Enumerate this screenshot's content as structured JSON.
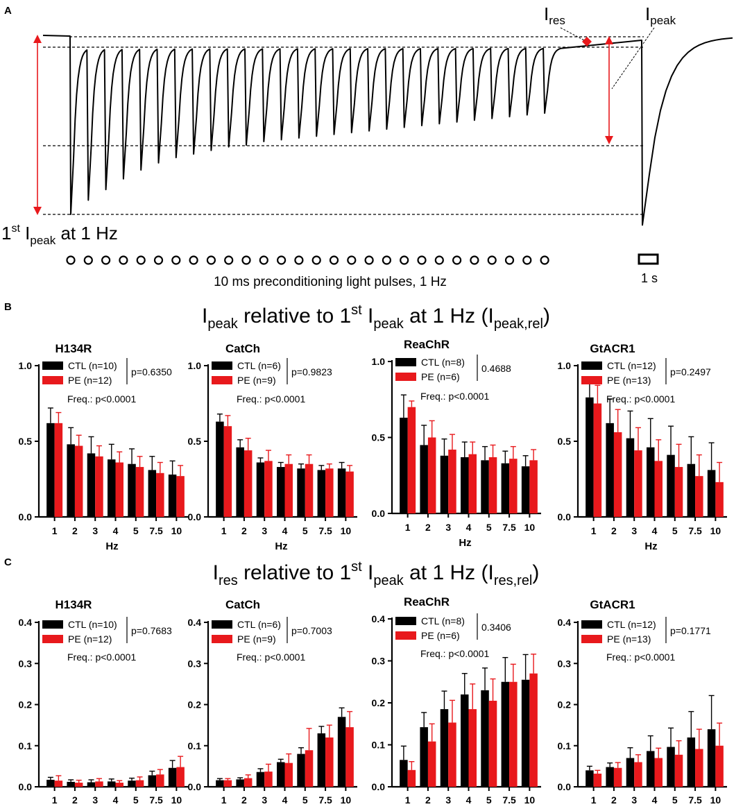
{
  "panelA": {
    "label": "A",
    "label_ires_main": "I",
    "label_ires_sub": "res",
    "label_ipeak_main": "I",
    "label_ipeak_sub": "peak",
    "first_peak": {
      "main": "1",
      "sup": "st",
      "i": " I",
      "sub": "peak",
      "tail": " at 1 Hz"
    },
    "pulses_caption": "10 ms preconditioning light pulses, 1 Hz",
    "scale_label": "1 s",
    "n_pulses": 28,
    "trace": {
      "baseline_rel": 1.0,
      "peak_rel": [
        1.0,
        0.92,
        0.86,
        0.8,
        0.75,
        0.71,
        0.68,
        0.66,
        0.64,
        0.62,
        0.61,
        0.59,
        0.58,
        0.57,
        0.56,
        0.55,
        0.54,
        0.53,
        0.52,
        0.51,
        0.5,
        0.49,
        0.48,
        0.47,
        0.46,
        0.45,
        0.44,
        0.43
      ],
      "final_peak_rel": 1.06,
      "res_rel": 0.06
    },
    "colors": {
      "trace": "#000000",
      "arrow": "#e8191c"
    }
  },
  "panelB": {
    "label": "B",
    "heading": {
      "a": "I",
      "a_sub": "peak",
      "b": " relative to 1",
      "b_sup": "st",
      "c": " I",
      "c_sub": "peak",
      "d": " at 1 Hz (I",
      "d_sub": "peak,rel",
      "e": ")"
    }
  },
  "panelC": {
    "label": "C",
    "heading": {
      "a": "I",
      "a_sub": "res",
      "b": " relative to 1",
      "b_sup": "st",
      "c": " I",
      "c_sub": "peak",
      "d": " at 1 Hz (I",
      "d_sub": "res,rel",
      "e": ")"
    }
  },
  "legend_labels": {
    "ctl": "CTL",
    "pe": "PE"
  },
  "freq_label": "Freq.: p<0.0001",
  "colors": {
    "ctl": "#000000",
    "pe": "#e8191c"
  },
  "chart_data": [
    {
      "id": "B-H134R",
      "type": "bar",
      "title": "H134R",
      "xlabel": "Hz",
      "ylabel": "",
      "ylim": [
        0,
        1.0
      ],
      "yticks": [
        "0.0",
        "0.5",
        "1.0"
      ],
      "ytick_values": [
        0,
        0.5,
        1.0
      ],
      "categories": [
        "1",
        "2",
        "3",
        "4",
        "5",
        "7.5",
        "10"
      ],
      "series": [
        {
          "name": "CTL (n=10)",
          "values": [
            0.62,
            0.48,
            0.42,
            0.38,
            0.35,
            0.31,
            0.28
          ],
          "errors": [
            0.1,
            0.11,
            0.11,
            0.1,
            0.1,
            0.09,
            0.09
          ]
        },
        {
          "name": "PE (n=12)",
          "values": [
            0.62,
            0.47,
            0.4,
            0.36,
            0.33,
            0.29,
            0.27
          ],
          "errors": [
            0.07,
            0.07,
            0.07,
            0.07,
            0.07,
            0.07,
            0.07
          ]
        }
      ],
      "p_value": "p=0.6350",
      "freq": "Freq.: p<0.0001"
    },
    {
      "id": "B-CatCh",
      "type": "bar",
      "title": "CatCh",
      "xlabel": "Hz",
      "ylabel": "",
      "ylim": [
        0,
        1.0
      ],
      "yticks": [
        "0.0",
        "0.5",
        "1.0"
      ],
      "ytick_values": [
        0,
        0.5,
        1.0
      ],
      "categories": [
        "1",
        "2",
        "3",
        "4",
        "5",
        "7.5",
        "10"
      ],
      "series": [
        {
          "name": "CTL (n=6)",
          "values": [
            0.63,
            0.46,
            0.36,
            0.33,
            0.32,
            0.31,
            0.32
          ],
          "errors": [
            0.05,
            0.05,
            0.03,
            0.03,
            0.03,
            0.03,
            0.04
          ]
        },
        {
          "name": "PE (n=9)",
          "values": [
            0.6,
            0.44,
            0.37,
            0.35,
            0.35,
            0.32,
            0.3
          ],
          "errors": [
            0.07,
            0.08,
            0.07,
            0.06,
            0.06,
            0.03,
            0.04
          ]
        }
      ],
      "p_value": "p=0.9823",
      "freq": "Freq.: p<0.0001"
    },
    {
      "id": "B-ReaChR",
      "type": "bar",
      "title": "ReaChR",
      "xlabel": "Hz",
      "ylabel": "",
      "ylim": [
        0,
        1.0
      ],
      "yticks": [
        "0.0",
        "0.5",
        "1.0"
      ],
      "ytick_values": [
        0,
        0.5,
        1.0
      ],
      "categories": [
        "1",
        "2",
        "3",
        "4",
        "5",
        "7.5",
        "10"
      ],
      "series": [
        {
          "name": "CTL (n=8)",
          "values": [
            0.63,
            0.45,
            0.38,
            0.37,
            0.35,
            0.33,
            0.31
          ],
          "errors": [
            0.15,
            0.13,
            0.11,
            0.1,
            0.09,
            0.08,
            0.07
          ]
        },
        {
          "name": "PE (n=6)",
          "values": [
            0.7,
            0.5,
            0.42,
            0.39,
            0.37,
            0.36,
            0.35
          ],
          "errors": [
            0.04,
            0.11,
            0.1,
            0.08,
            0.08,
            0.08,
            0.07
          ]
        }
      ],
      "p_value": "0.4688",
      "freq": "Freq.: p<0.0001"
    },
    {
      "id": "B-GtACR1",
      "type": "bar",
      "title": "GtACR1",
      "xlabel": "Hz",
      "ylabel": "",
      "ylim": [
        0,
        1.0
      ],
      "yticks": [
        "0.0",
        "0.5",
        "1.0"
      ],
      "ytick_values": [
        0,
        0.5,
        1.0
      ],
      "categories": [
        "1",
        "2",
        "3",
        "4",
        "5",
        "7.5",
        "10"
      ],
      "series": [
        {
          "name": "CTL (n=12)",
          "values": [
            0.79,
            0.62,
            0.52,
            0.46,
            0.41,
            0.35,
            0.31
          ],
          "errors": [
            0.11,
            0.16,
            0.18,
            0.19,
            0.19,
            0.18,
            0.18
          ]
        },
        {
          "name": "PE (n=13)",
          "values": [
            0.75,
            0.56,
            0.44,
            0.37,
            0.33,
            0.27,
            0.23
          ],
          "errors": [
            0.12,
            0.15,
            0.15,
            0.14,
            0.15,
            0.14,
            0.13
          ]
        }
      ],
      "p_value": "p=0.2497",
      "freq": "Freq.: p<0.0001"
    },
    {
      "id": "C-H134R",
      "type": "bar",
      "title": "H134R",
      "xlabel": "Hz",
      "ylabel": "",
      "ylim": [
        0,
        0.4
      ],
      "yticks": [
        "0.0",
        "0.1",
        "0.2",
        "0.3",
        "0.4"
      ],
      "ytick_values": [
        0,
        0.1,
        0.2,
        0.3,
        0.4
      ],
      "categories": [
        "1",
        "2",
        "3",
        "4",
        "5",
        "7.5",
        "10"
      ],
      "series": [
        {
          "name": "CTL (n=10)",
          "values": [
            0.017,
            0.012,
            0.011,
            0.013,
            0.015,
            0.028,
            0.046
          ],
          "errors": [
            0.006,
            0.005,
            0.006,
            0.006,
            0.006,
            0.01,
            0.018
          ]
        },
        {
          "name": "PE (n=12)",
          "values": [
            0.015,
            0.01,
            0.013,
            0.01,
            0.016,
            0.03,
            0.048
          ],
          "errors": [
            0.012,
            0.006,
            0.007,
            0.005,
            0.008,
            0.012,
            0.026
          ]
        }
      ],
      "p_value": "p=0.7683",
      "freq": "Freq.: p<0.0001"
    },
    {
      "id": "C-CatCh",
      "type": "bar",
      "title": "CatCh",
      "xlabel": "Hz",
      "ylabel": "",
      "ylim": [
        0,
        0.4
      ],
      "yticks": [
        "0.0",
        "0.1",
        "0.2",
        "0.3",
        "0.4"
      ],
      "ytick_values": [
        0,
        0.1,
        0.2,
        0.3,
        0.4
      ],
      "categories": [
        "1",
        "2",
        "3",
        "4",
        "5",
        "7.5",
        "10"
      ],
      "series": [
        {
          "name": "CTL (n=6)",
          "values": [
            0.016,
            0.018,
            0.036,
            0.06,
            0.08,
            0.13,
            0.17
          ],
          "errors": [
            0.004,
            0.004,
            0.008,
            0.007,
            0.015,
            0.017,
            0.022
          ]
        },
        {
          "name": "PE (n=9)",
          "values": [
            0.016,
            0.021,
            0.037,
            0.058,
            0.089,
            0.12,
            0.145
          ],
          "errors": [
            0.004,
            0.008,
            0.018,
            0.022,
            0.053,
            0.03,
            0.038
          ]
        }
      ],
      "p_value": "p=0.7003",
      "freq": "Freq.: p<0.0001"
    },
    {
      "id": "C-ReaChR",
      "type": "bar",
      "title": "ReaChR",
      "xlabel": "Hz",
      "ylabel": "",
      "ylim": [
        0,
        0.4
      ],
      "yticks": [
        "0.0",
        "0.1",
        "0.2",
        "0.3",
        "0.4"
      ],
      "ytick_values": [
        0,
        0.1,
        0.2,
        0.3,
        0.4
      ],
      "categories": [
        "1",
        "2",
        "3",
        "4",
        "5",
        "7.5",
        "10"
      ],
      "series": [
        {
          "name": "CTL (n=8)",
          "values": [
            0.064,
            0.142,
            0.185,
            0.22,
            0.23,
            0.25,
            0.255
          ],
          "errors": [
            0.033,
            0.035,
            0.043,
            0.05,
            0.053,
            0.058,
            0.06
          ]
        },
        {
          "name": "PE (n=6)",
          "values": [
            0.04,
            0.108,
            0.153,
            0.185,
            0.205,
            0.25,
            0.27
          ],
          "errors": [
            0.02,
            0.042,
            0.053,
            0.06,
            0.052,
            0.042,
            0.046
          ]
        }
      ],
      "p_value": "0.3406",
      "freq": "Freq.: p<0.0001"
    },
    {
      "id": "C-GtACR1",
      "type": "bar",
      "title": "GtACR1",
      "xlabel": "Hz",
      "ylabel": "",
      "ylim": [
        0,
        0.4
      ],
      "yticks": [
        "0.0",
        "0.1",
        "0.2",
        "0.3",
        "0.4"
      ],
      "ytick_values": [
        0,
        0.1,
        0.2,
        0.3,
        0.4
      ],
      "categories": [
        "1",
        "2",
        "3",
        "4",
        "5",
        "7.5",
        "10"
      ],
      "series": [
        {
          "name": "CTL (n=12)",
          "values": [
            0.04,
            0.048,
            0.07,
            0.087,
            0.097,
            0.12,
            0.14
          ],
          "errors": [
            0.01,
            0.01,
            0.025,
            0.037,
            0.046,
            0.063,
            0.082
          ]
        },
        {
          "name": "PE (n=13)",
          "values": [
            0.032,
            0.046,
            0.06,
            0.07,
            0.078,
            0.092,
            0.1
          ],
          "errors": [
            0.008,
            0.013,
            0.018,
            0.024,
            0.034,
            0.048,
            0.055
          ]
        }
      ],
      "p_value": "p=0.1771",
      "freq": "Freq.: p<0.0001"
    }
  ]
}
